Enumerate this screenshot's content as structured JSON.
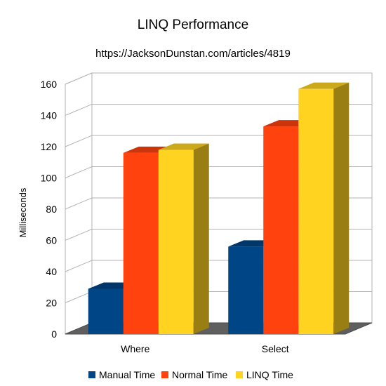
{
  "chart_data": {
    "type": "bar",
    "title": "LINQ Performance",
    "subtitle": "https://JacksonDunstan.com/articles/4819",
    "xlabel": "",
    "ylabel": "Milliseconds",
    "ylim": [
      0,
      160
    ],
    "yticks": [
      0,
      20,
      40,
      60,
      80,
      100,
      120,
      140,
      160
    ],
    "categories": [
      "Where",
      "Select"
    ],
    "series": [
      {
        "name": "Manual Time",
        "values": [
          29,
          56
        ],
        "color": "#004586"
      },
      {
        "name": "Normal Time",
        "values": [
          116,
          133
        ],
        "color": "#ff420e"
      },
      {
        "name": "LINQ Time",
        "values": [
          118,
          157
        ],
        "color": "#ffd320"
      }
    ],
    "grid": true,
    "legend": "bottom",
    "style": "3d"
  }
}
